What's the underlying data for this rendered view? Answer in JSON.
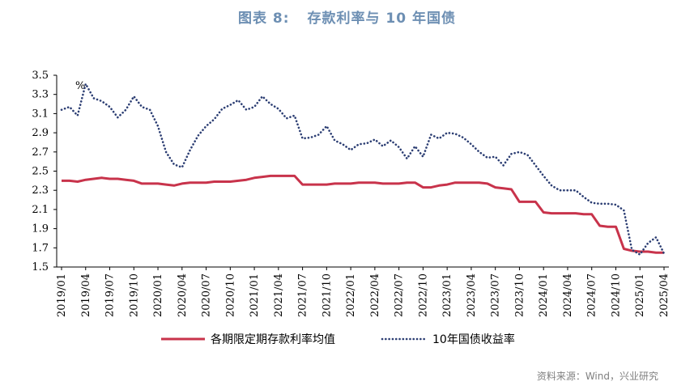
{
  "title": {
    "figure": "图表 8:",
    "text": "存款利率与 10 年国债"
  },
  "source": "资料来源：Wind，兴业研究",
  "chart_data": {
    "type": "line",
    "unit_label": "%",
    "ylim": [
      1.5,
      3.5
    ],
    "yticks": [
      "1.5",
      "1.7",
      "1.9",
      "2.1",
      "2.3",
      "2.5",
      "2.7",
      "2.9",
      "3.1",
      "3.3",
      "3.5"
    ],
    "xticks": [
      "2019/01",
      "2019/04",
      "2019/07",
      "2019/10",
      "2020/01",
      "2020/04",
      "2020/07",
      "2020/10",
      "2021/01",
      "2021/04",
      "2021/07",
      "2021/10",
      "2022/01",
      "2022/04",
      "2022/07",
      "2022/10",
      "2023/01",
      "2023/04",
      "2023/07",
      "2023/10",
      "2024/01",
      "2024/04",
      "2024/07",
      "2024/10",
      "2025/01",
      "2025/04"
    ],
    "grid": false,
    "legend_position": "bottom",
    "series": [
      {
        "name": "各期限定期存款利率均值",
        "color": "#c8334b",
        "style": "solid",
        "x": [
          "2019/01",
          "2019/02",
          "2019/03",
          "2019/04",
          "2019/05",
          "2019/06",
          "2019/07",
          "2019/08",
          "2019/09",
          "2019/10",
          "2019/11",
          "2019/12",
          "2020/01",
          "2020/02",
          "2020/03",
          "2020/04",
          "2020/05",
          "2020/06",
          "2020/07",
          "2020/08",
          "2020/09",
          "2020/10",
          "2020/11",
          "2020/12",
          "2021/01",
          "2021/02",
          "2021/03",
          "2021/04",
          "2021/05",
          "2021/06",
          "2021/07",
          "2021/08",
          "2021/09",
          "2021/10",
          "2021/11",
          "2021/12",
          "2022/01",
          "2022/02",
          "2022/03",
          "2022/04",
          "2022/05",
          "2022/06",
          "2022/07",
          "2022/08",
          "2022/09",
          "2022/10",
          "2022/11",
          "2022/12",
          "2023/01",
          "2023/02",
          "2023/03",
          "2023/04",
          "2023/05",
          "2023/06",
          "2023/07",
          "2023/08",
          "2023/09",
          "2023/10",
          "2023/11",
          "2023/12",
          "2024/01",
          "2024/02",
          "2024/03",
          "2024/04",
          "2024/05",
          "2024/06",
          "2024/07",
          "2024/08",
          "2024/09",
          "2024/10",
          "2024/11",
          "2024/12",
          "2025/01",
          "2025/02",
          "2025/03",
          "2025/04"
        ],
        "values": [
          2.4,
          2.4,
          2.39,
          2.41,
          2.42,
          2.43,
          2.42,
          2.42,
          2.41,
          2.4,
          2.37,
          2.37,
          2.37,
          2.36,
          2.35,
          2.37,
          2.38,
          2.38,
          2.38,
          2.39,
          2.39,
          2.39,
          2.4,
          2.41,
          2.43,
          2.44,
          2.45,
          2.45,
          2.45,
          2.45,
          2.36,
          2.36,
          2.36,
          2.36,
          2.37,
          2.37,
          2.37,
          2.38,
          2.38,
          2.38,
          2.37,
          2.37,
          2.37,
          2.38,
          2.38,
          2.33,
          2.33,
          2.35,
          2.36,
          2.38,
          2.38,
          2.38,
          2.38,
          2.37,
          2.33,
          2.32,
          2.31,
          2.18,
          2.18,
          2.18,
          2.07,
          2.06,
          2.06,
          2.06,
          2.06,
          2.05,
          2.05,
          1.93,
          1.92,
          1.92,
          1.69,
          1.67,
          1.66,
          1.66,
          1.65,
          1.65
        ]
      },
      {
        "name": "10年国债收益率",
        "color": "#2c3e73",
        "style": "dotted",
        "x": [
          "2019/01",
          "2019/02",
          "2019/03",
          "2019/04",
          "2019/05",
          "2019/06",
          "2019/07",
          "2019/08",
          "2019/09",
          "2019/10",
          "2019/11",
          "2019/12",
          "2020/01",
          "2020/02",
          "2020/03",
          "2020/04",
          "2020/05",
          "2020/06",
          "2020/07",
          "2020/08",
          "2020/09",
          "2020/10",
          "2020/11",
          "2020/12",
          "2021/01",
          "2021/02",
          "2021/03",
          "2021/04",
          "2021/05",
          "2021/06",
          "2021/07",
          "2021/08",
          "2021/09",
          "2021/10",
          "2021/11",
          "2021/12",
          "2022/01",
          "2022/02",
          "2022/03",
          "2022/04",
          "2022/05",
          "2022/06",
          "2022/07",
          "2022/08",
          "2022/09",
          "2022/10",
          "2022/11",
          "2022/12",
          "2023/01",
          "2023/02",
          "2023/03",
          "2023/04",
          "2023/05",
          "2023/06",
          "2023/07",
          "2023/08",
          "2023/09",
          "2023/10",
          "2023/11",
          "2023/12",
          "2024/01",
          "2024/02",
          "2024/03",
          "2024/04",
          "2024/05",
          "2024/06",
          "2024/07",
          "2024/08",
          "2024/09",
          "2024/10",
          "2024/11",
          "2024/12",
          "2025/01",
          "2025/02",
          "2025/03",
          "2025/04"
        ],
        "values": [
          3.14,
          3.17,
          3.08,
          3.41,
          3.26,
          3.23,
          3.17,
          3.06,
          3.14,
          3.28,
          3.17,
          3.14,
          2.97,
          2.7,
          2.57,
          2.54,
          2.72,
          2.87,
          2.97,
          3.04,
          3.15,
          3.19,
          3.24,
          3.14,
          3.17,
          3.28,
          3.2,
          3.15,
          3.05,
          3.08,
          2.84,
          2.85,
          2.88,
          2.97,
          2.82,
          2.78,
          2.72,
          2.78,
          2.79,
          2.83,
          2.76,
          2.82,
          2.75,
          2.63,
          2.76,
          2.65,
          2.88,
          2.84,
          2.9,
          2.89,
          2.85,
          2.78,
          2.7,
          2.64,
          2.65,
          2.56,
          2.68,
          2.7,
          2.67,
          2.56,
          2.45,
          2.35,
          2.3,
          2.3,
          2.3,
          2.23,
          2.17,
          2.16,
          2.16,
          2.15,
          2.09,
          1.68,
          1.63,
          1.75,
          1.81,
          1.64
        ]
      }
    ]
  }
}
